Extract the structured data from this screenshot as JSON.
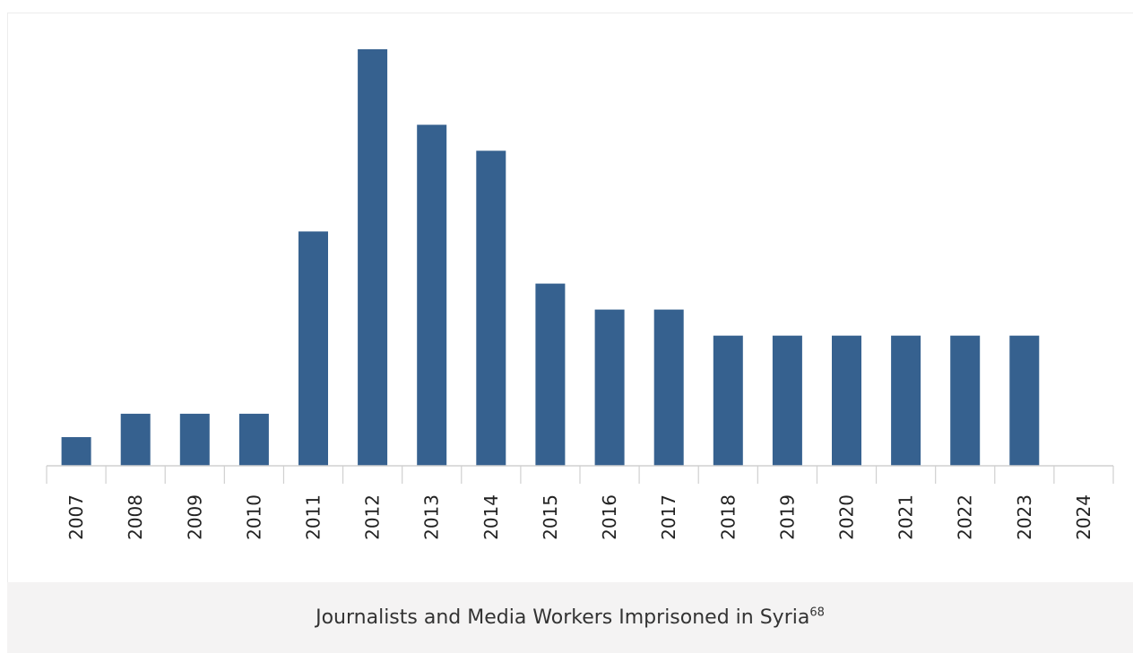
{
  "caption": {
    "text": "Journalists and Media Workers Imprisoned in Syria",
    "footnote": "68"
  },
  "colors": {
    "bar": "#36618f",
    "axis": "#d0d0d0",
    "caption_background": "#f4f3f3"
  },
  "chart_data": {
    "type": "bar",
    "title": "",
    "xlabel": "",
    "ylabel": "",
    "categories": [
      "2007",
      "2008",
      "2009",
      "2010",
      "2011",
      "2012",
      "2013",
      "2014",
      "2015",
      "2016",
      "2017",
      "2018",
      "2019",
      "2020",
      "2021",
      "2022",
      "2023",
      "2024"
    ],
    "values": [
      1.1,
      2.0,
      2.0,
      2.0,
      9.0,
      16.0,
      13.1,
      12.1,
      7.0,
      6.0,
      6.0,
      5.0,
      5.0,
      5.0,
      5.0,
      5.0,
      5.0,
      0
    ],
    "ylim": [
      0,
      16
    ],
    "y_axis_visible": false,
    "grid": false,
    "legend": "none"
  }
}
